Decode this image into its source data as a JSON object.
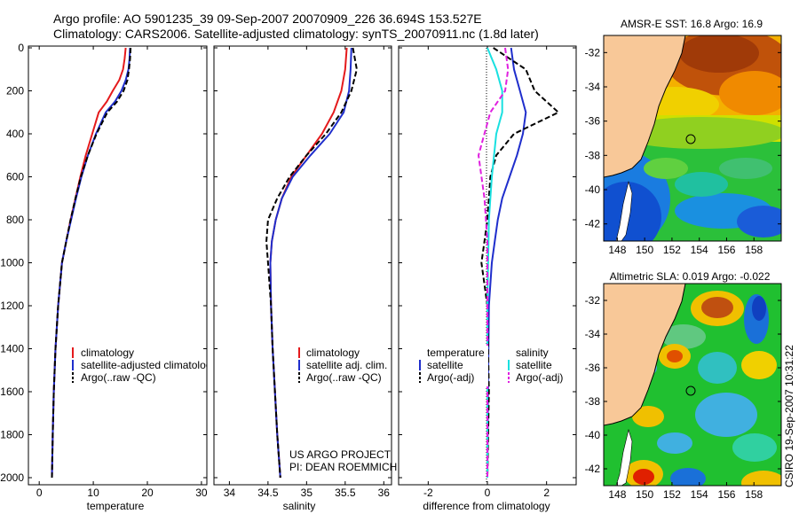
{
  "header": {
    "line1": "Argo profile: AO 5901235_39 09-Sep-2007 20070909_226 36.694S 153.527E",
    "line2": "Climatology: CARS2006. Satellite-adjusted climatology: synTS_20070911.nc (1.8d later)"
  },
  "colors": {
    "climatology": "#e41a1c",
    "satellite": "#1f2ecc",
    "argo": "#000000",
    "salinity_satellite": "#19e0e0",
    "salinity_argo": "#e020e0",
    "land": "#f8c898"
  },
  "panels": {
    "temperature": {
      "xlabel": "temperature",
      "xticks": [
        "0",
        "10",
        "20",
        "30"
      ],
      "legend": [
        "climatology",
        "satellite-adjusted climatology",
        "Argo(..raw -QC)"
      ]
    },
    "salinity": {
      "xlabel": "salinity",
      "xticks": [
        "34",
        "34.5",
        "35",
        "35.5",
        "36"
      ],
      "legend": [
        "climatology",
        "satellite adj. clim.",
        "Argo(..raw -QC)"
      ],
      "credit1": "US ARGO PROJECT",
      "credit2": "PI: DEAN ROEMMICH"
    },
    "difference": {
      "xlabel": "difference from climatology",
      "xticks": [
        "-2",
        "0",
        "2"
      ],
      "legend_temperature": [
        "temperature",
        "satellite",
        "Argo(-adj)"
      ],
      "legend_salinity": [
        "salinity",
        "satellite",
        "Argo(-adj)"
      ]
    },
    "yticks": [
      "0",
      "200",
      "400",
      "600",
      "800",
      "1000",
      "1200",
      "1400",
      "1600",
      "1800",
      "2000"
    ]
  },
  "maps": {
    "sst_title": "AMSR-E SST: 16.8 Argo: 16.9",
    "sla_title": "Altimetric SLA: 0.019 Argo: -0.022",
    "lat_ticks": [
      "-32",
      "-34",
      "-36",
      "-38",
      "-40",
      "-42"
    ],
    "lon_ticks": [
      "148",
      "150",
      "152",
      "154",
      "156",
      "158"
    ]
  },
  "side_label": "CSIRO 19-Sep-2007 10:31:22",
  "chart_data": [
    {
      "type": "line",
      "xlabel": "temperature",
      "xlim": [
        -2,
        31
      ],
      "ylim": [
        2050,
        0
      ],
      "series": [
        {
          "name": "climatology",
          "x": [
            16.0,
            15.8,
            15.5,
            14.8,
            13.6,
            12.5,
            11.0,
            9.8,
            8.6,
            7.6,
            6.7,
            5.8,
            5.0,
            4.2,
            3.5,
            3.0,
            2.7,
            2.5,
            2.35
          ],
          "depth": [
            0,
            50,
            100,
            150,
            200,
            250,
            300,
            400,
            500,
            600,
            700,
            800,
            900,
            1000,
            1200,
            1400,
            1600,
            1800,
            2000
          ]
        },
        {
          "name": "satellite-adjusted climatology",
          "x": [
            16.8,
            16.7,
            16.5,
            16.0,
            15.2,
            14.0,
            12.3,
            10.5,
            9.0,
            7.8,
            6.8,
            5.9,
            5.0,
            4.2,
            3.5,
            3.0,
            2.7,
            2.5,
            2.35
          ],
          "depth": [
            0,
            50,
            100,
            150,
            200,
            250,
            300,
            400,
            500,
            600,
            700,
            800,
            900,
            1000,
            1200,
            1400,
            1600,
            1800,
            2000
          ]
        },
        {
          "name": "Argo(..raw -QC)",
          "x": [
            16.9,
            16.8,
            16.6,
            16.3,
            15.6,
            14.4,
            12.6,
            10.6,
            9.0,
            7.7,
            6.7,
            5.8,
            5.0,
            4.2,
            3.5,
            3.0,
            2.7,
            2.5,
            2.35
          ],
          "depth": [
            0,
            50,
            100,
            150,
            200,
            250,
            300,
            400,
            500,
            600,
            700,
            800,
            900,
            1000,
            1200,
            1400,
            1600,
            1800,
            2000
          ]
        }
      ]
    },
    {
      "type": "line",
      "xlabel": "salinity",
      "xlim": [
        33.8,
        36.1
      ],
      "ylim": [
        2050,
        0
      ],
      "series": [
        {
          "name": "climatology",
          "x": [
            35.52,
            35.5,
            35.45,
            35.35,
            35.2,
            35.0,
            34.8,
            34.68,
            34.6,
            34.55,
            34.53,
            34.54,
            34.56,
            34.59,
            34.62,
            34.66
          ],
          "depth": [
            0,
            100,
            200,
            300,
            400,
            500,
            600,
            700,
            800,
            900,
            1000,
            1200,
            1400,
            1600,
            1800,
            2000
          ]
        },
        {
          "name": "satellite adj. clim.",
          "x": [
            35.58,
            35.57,
            35.55,
            35.48,
            35.3,
            35.05,
            34.82,
            34.68,
            34.6,
            34.55,
            34.53,
            34.54,
            34.56,
            34.59,
            34.62,
            34.66
          ],
          "depth": [
            0,
            100,
            200,
            300,
            400,
            500,
            600,
            700,
            800,
            900,
            1000,
            1200,
            1400,
            1600,
            1800,
            2000
          ]
        },
        {
          "name": "Argo(..raw -QC)",
          "x": [
            35.6,
            35.65,
            35.58,
            35.45,
            35.25,
            35.0,
            34.78,
            34.62,
            34.5,
            34.48,
            34.5,
            34.54,
            34.56,
            34.59,
            34.62,
            34.66
          ],
          "depth": [
            0,
            100,
            200,
            300,
            400,
            500,
            600,
            700,
            800,
            900,
            1000,
            1200,
            1400,
            1600,
            1800,
            2000
          ]
        }
      ]
    },
    {
      "type": "line",
      "xlabel": "difference from climatology",
      "xlim": [
        -3,
        3
      ],
      "ylim": [
        2050,
        0
      ],
      "series": [
        {
          "name": "satellite",
          "x": [
            0.8,
            0.9,
            1.1,
            1.3,
            1.2,
            1.0,
            0.75,
            0.5,
            0.35,
            0.25,
            0.15,
            0.05,
            0.02,
            0.0
          ],
          "depth": [
            0,
            100,
            200,
            300,
            400,
            500,
            600,
            700,
            800,
            900,
            1000,
            1200,
            1600,
            2000
          ]
        },
        {
          "name": "Argo(-adj)",
          "x": [
            0.2,
            1.3,
            1.6,
            2.4,
            0.9,
            0.3,
            0.1,
            0.05,
            0.0,
            -0.1,
            -0.2,
            0.0,
            0.05,
            0.0
          ],
          "depth": [
            0,
            100,
            200,
            300,
            400,
            500,
            600,
            700,
            800,
            900,
            1000,
            1200,
            1600,
            2000
          ]
        },
        {
          "name": "satellite",
          "x": [
            0.0,
            0.3,
            0.5,
            0.5,
            0.3,
            0.15,
            0.05,
            0.0,
            0.0,
            0.0
          ],
          "depth": [
            0,
            100,
            200,
            300,
            400,
            600,
            800,
            1200,
            1600,
            2000
          ]
        },
        {
          "name": "Argo(-adj)",
          "x": [
            0.6,
            0.7,
            0.6,
            0.1,
            -0.3,
            -0.1,
            0.0,
            0.0,
            0.0,
            0.0
          ],
          "depth": [
            0,
            100,
            200,
            300,
            500,
            700,
            900,
            1200,
            1600,
            2000
          ]
        }
      ]
    }
  ]
}
